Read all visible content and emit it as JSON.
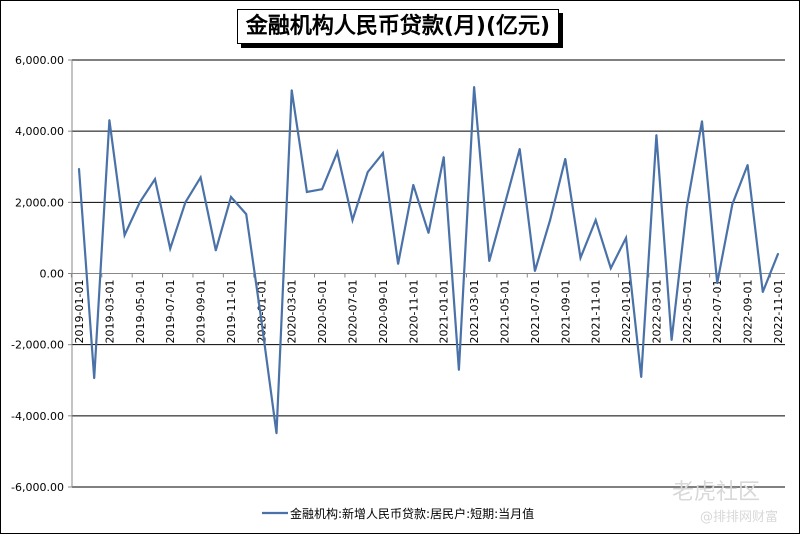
{
  "chart_data": {
    "type": "line",
    "title": "金融机构人民币贷款(月)(亿元)",
    "xlabel": "",
    "ylabel": "",
    "ylim": [
      -6000,
      6000
    ],
    "yticks": [
      "6,000.00",
      "4,000.00",
      "2,000.00",
      "0.00",
      "-2,000.00",
      "-4,000.00",
      "-6,000.00"
    ],
    "ytick_values": [
      6000,
      4000,
      2000,
      0,
      -2000,
      -4000,
      -6000
    ],
    "grid": true,
    "legend_position": "bottom",
    "x": [
      "2019-01-01",
      "2019-02-01",
      "2019-03-01",
      "2019-04-01",
      "2019-05-01",
      "2019-06-01",
      "2019-07-01",
      "2019-08-01",
      "2019-09-01",
      "2019-10-01",
      "2019-11-01",
      "2019-12-01",
      "2020-01-01",
      "2020-02-01",
      "2020-03-01",
      "2020-04-01",
      "2020-05-01",
      "2020-06-01",
      "2020-07-01",
      "2020-08-01",
      "2020-09-01",
      "2020-10-01",
      "2020-11-01",
      "2020-12-01",
      "2021-01-01",
      "2021-02-01",
      "2021-03-01",
      "2021-04-01",
      "2021-05-01",
      "2021-06-01",
      "2021-07-01",
      "2021-08-01",
      "2021-09-01",
      "2021-10-01",
      "2021-11-01",
      "2021-12-01",
      "2022-01-01",
      "2022-02-01",
      "2022-03-01",
      "2022-04-01",
      "2022-05-01",
      "2022-06-01",
      "2022-07-01",
      "2022-08-01",
      "2022-09-01",
      "2022-10-01",
      "2022-11-01"
    ],
    "series": [
      {
        "name": "金融机构:新增人民币贷款:居民户:短期:当月值",
        "color": "#4a72a8",
        "values": [
          2940,
          -2940,
          4310,
          1080,
          2000,
          2650,
          700,
          2000,
          2700,
          650,
          2150,
          1670,
          -1300,
          -4490,
          5150,
          2290,
          2370,
          3410,
          1500,
          2850,
          3380,
          270,
          2490,
          1140,
          3270,
          -2710,
          5240,
          350,
          1920,
          3500,
          70,
          1500,
          3220,
          440,
          1500,
          150,
          1000,
          -2910,
          3890,
          -1870,
          1870,
          4280,
          -270,
          1950,
          3050,
          -520,
          550
        ]
      }
    ]
  },
  "watermark": {
    "line1": "老虎社区",
    "line2": "@排排网财富"
  }
}
